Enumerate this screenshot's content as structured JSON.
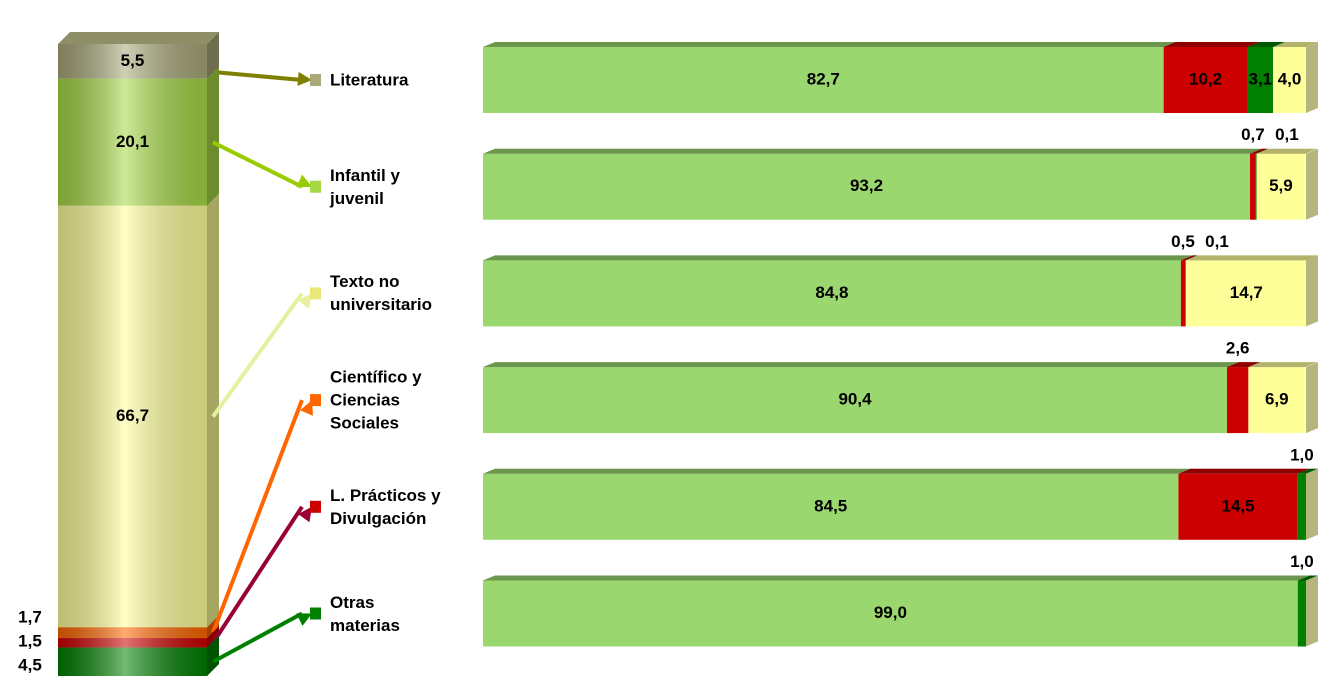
{
  "chart_data": [
    {
      "type": "stacked_column",
      "values": [
        5.5,
        20.1,
        66.7,
        1.7,
        1.5,
        4.5
      ],
      "value_labels": [
        "5,5",
        "20,1",
        "66,7",
        "1,7",
        "1,5",
        "4,5"
      ],
      "colors": [
        "#a9a97a",
        "#a6d845",
        "#ffff99",
        "#ff6600",
        "#cc0000",
        "#008000"
      ],
      "arrow_colors": [
        "#808000",
        "#99cc00",
        "#e6f0a0",
        "#ff6600",
        "#990033",
        "#008000"
      ],
      "ylim": [
        0,
        100
      ]
    },
    {
      "type": "stacked_bar",
      "categories": [
        "Literatura",
        "Infantil y\njuvenil",
        "Texto no\nuniversitario",
        "Científico y\nCiencias\nSociales",
        "L. Prácticos y\nDivulgación",
        "Otras\nmaterias"
      ],
      "series": [
        {
          "color": "#9bd76f",
          "values": [
            82.7,
            93.2,
            84.8,
            90.4,
            84.5,
            99.0
          ],
          "value_labels": [
            "82,7",
            "93,2",
            "84,8",
            "90,4",
            "84,5",
            "99,0"
          ]
        },
        {
          "color": "#cc0000",
          "values": [
            10.2,
            0.7,
            0.5,
            2.6,
            14.5,
            null
          ],
          "value_labels": [
            "10,2",
            "0,7",
            "0,5",
            "2,6",
            "14,5",
            null
          ]
        },
        {
          "color": "#007f00",
          "values": [
            3.1,
            0.1,
            0.1,
            null,
            1.0,
            1.0
          ],
          "value_labels": [
            "3,1",
            "0,1",
            "0,1",
            null,
            "1,0",
            "1,0"
          ]
        },
        {
          "color": "#ffff99",
          "values": [
            4.0,
            5.9,
            14.7,
            6.9,
            null,
            null
          ],
          "value_labels": [
            "4,0",
            "5,9",
            "14,7",
            "6,9",
            null,
            null
          ]
        }
      ],
      "xlim": [
        0,
        100
      ]
    }
  ]
}
